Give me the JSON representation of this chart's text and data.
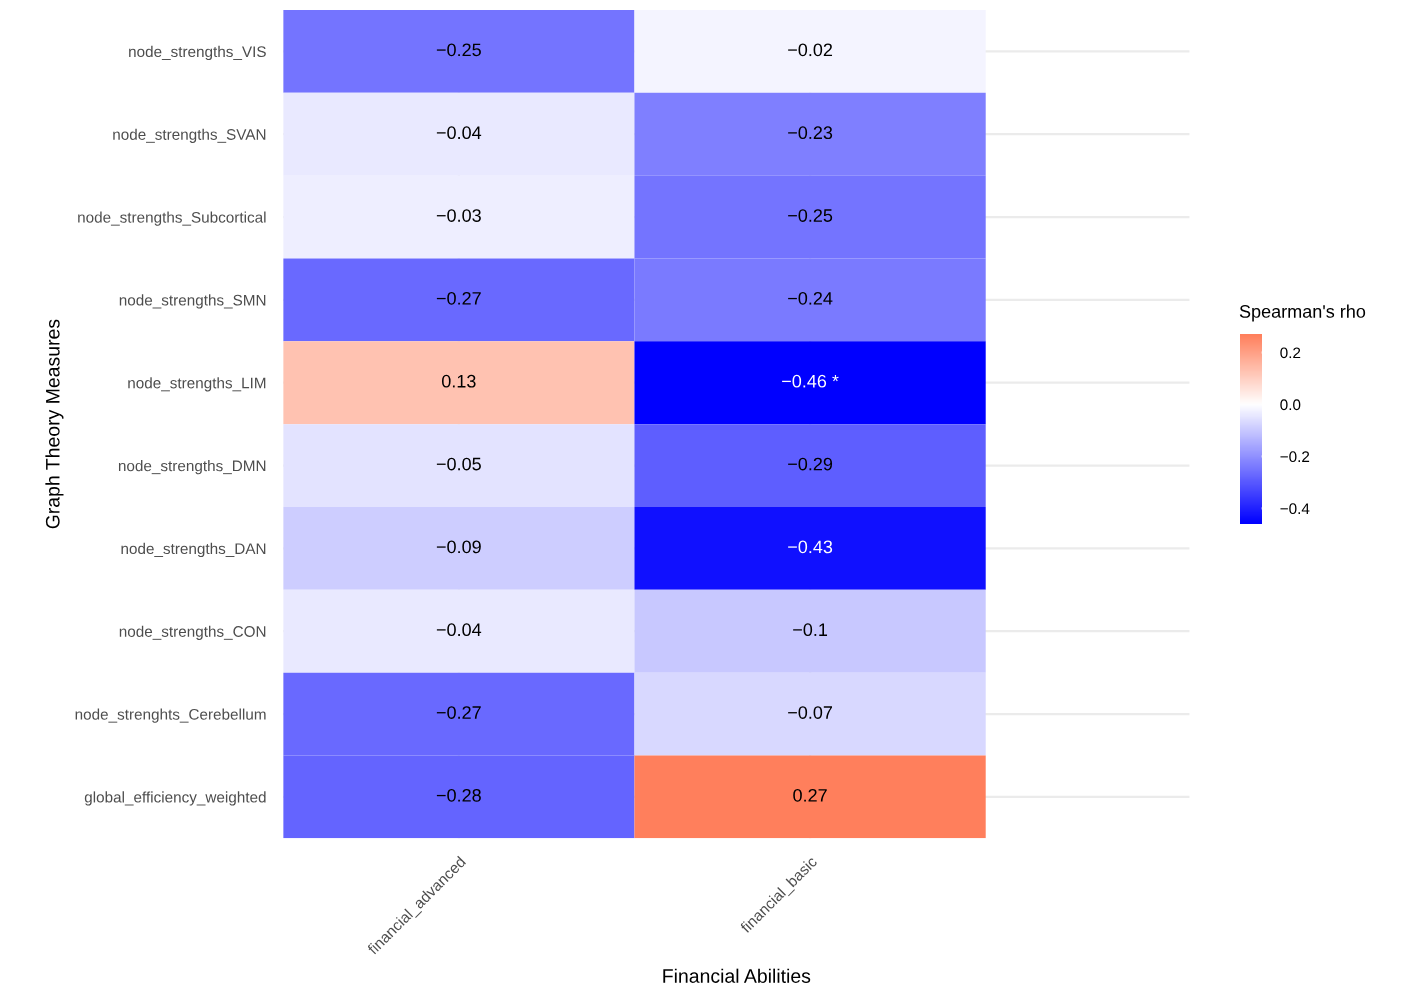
{
  "chart_data": {
    "type": "heatmap",
    "xlabel": "Financial Abilities",
    "ylabel": "Graph Theory Measures",
    "clabel": "Spearman's rho",
    "categories": [
      "financial_advanced",
      "financial_basic"
    ],
    "y_categories": [
      "node_strengths_VIS",
      "node_strengths_SVAN",
      "node_strengths_Subcortical",
      "node_strengths_SMN",
      "node_strengths_LIM",
      "node_strengths_DMN",
      "node_strengths_DAN",
      "node_strengths_CON",
      "node_strenghts_Cerebellum",
      "global_efficiency_weighted"
    ],
    "cells": [
      [
        -0.25,
        -0.02
      ],
      [
        -0.04,
        -0.23
      ],
      [
        -0.03,
        -0.25
      ],
      [
        -0.27,
        -0.24
      ],
      [
        0.13,
        -0.46
      ],
      [
        -0.05,
        -0.29
      ],
      [
        -0.09,
        -0.43
      ],
      [
        -0.04,
        -0.1
      ],
      [
        -0.27,
        -0.07
      ],
      [
        -0.28,
        0.27
      ]
    ],
    "cell_labels": [
      [
        "−0.25",
        "−0.02"
      ],
      [
        "−0.04",
        "−0.23"
      ],
      [
        "−0.03",
        "−0.25"
      ],
      [
        "−0.27",
        "−0.24"
      ],
      [
        "0.13",
        "−0.46 *"
      ],
      [
        "−0.05",
        "−0.29"
      ],
      [
        "−0.09",
        "−0.43"
      ],
      [
        "−0.04",
        "−0.1"
      ],
      [
        "−0.27",
        "−0.07"
      ],
      [
        "−0.28",
        "0.27"
      ]
    ],
    "clim": [
      -0.46,
      0.27
    ],
    "cticks": [
      {
        "value": -0.4,
        "label": "−0.4"
      },
      {
        "value": -0.2,
        "label": "−0.2"
      },
      {
        "value": 0,
        "label": "0.0"
      },
      {
        "value": 0.2,
        "label": "0.2"
      }
    ],
    "grid": true
  }
}
